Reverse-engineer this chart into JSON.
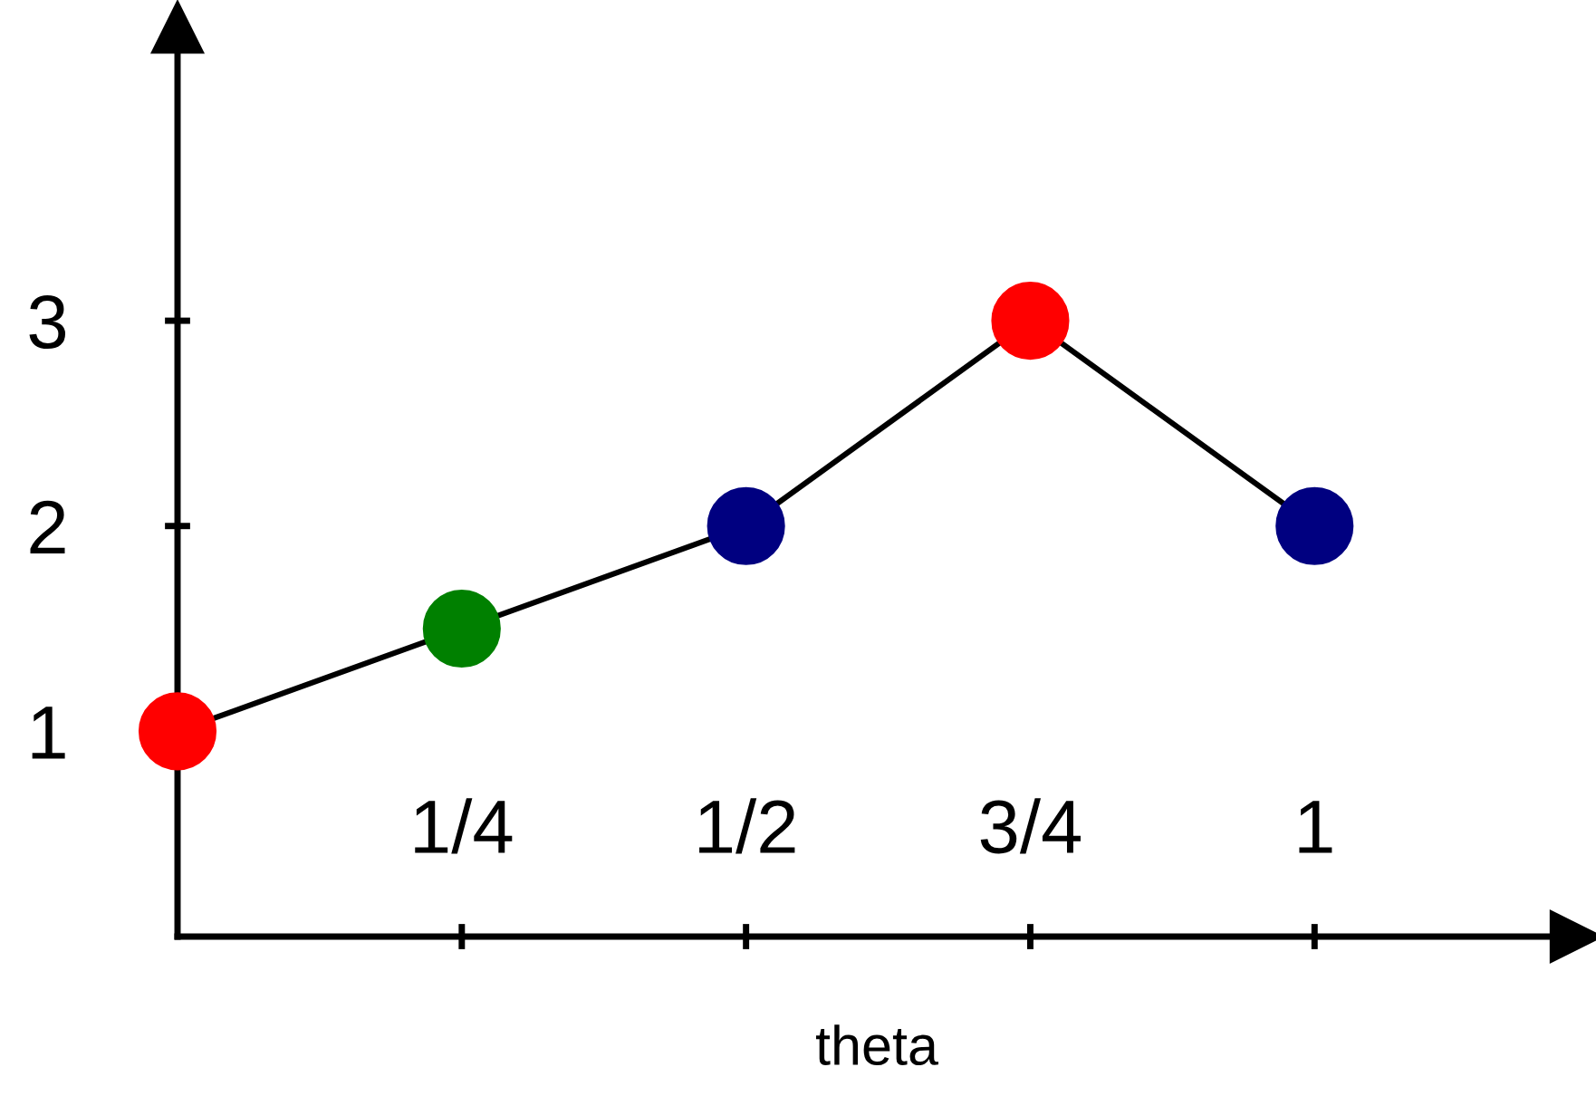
{
  "chart_data": {
    "type": "line",
    "xlabel": "theta",
    "x": [
      0,
      0.25,
      0.5,
      0.75,
      1
    ],
    "series": [
      {
        "color": "#000000",
        "values": [
          1,
          1.5,
          2,
          3,
          2
        ],
        "colors": [
          "#ff0000",
          "#008000",
          "#000080",
          "#ff0000",
          "#000080"
        ]
      }
    ],
    "marker": "circle",
    "line_style": "solid",
    "xlim": [
      0,
      1.23
    ],
    "ylim": [
      0,
      4.43
    ],
    "xticks": [
      {
        "value": 0.25,
        "label": "1/4"
      },
      {
        "value": 0.5,
        "label": "1/2"
      },
      {
        "value": 0.75,
        "label": "3/4"
      },
      1
    ],
    "yticks": [
      1,
      2,
      3
    ],
    "grid": false,
    "legend": false
  }
}
